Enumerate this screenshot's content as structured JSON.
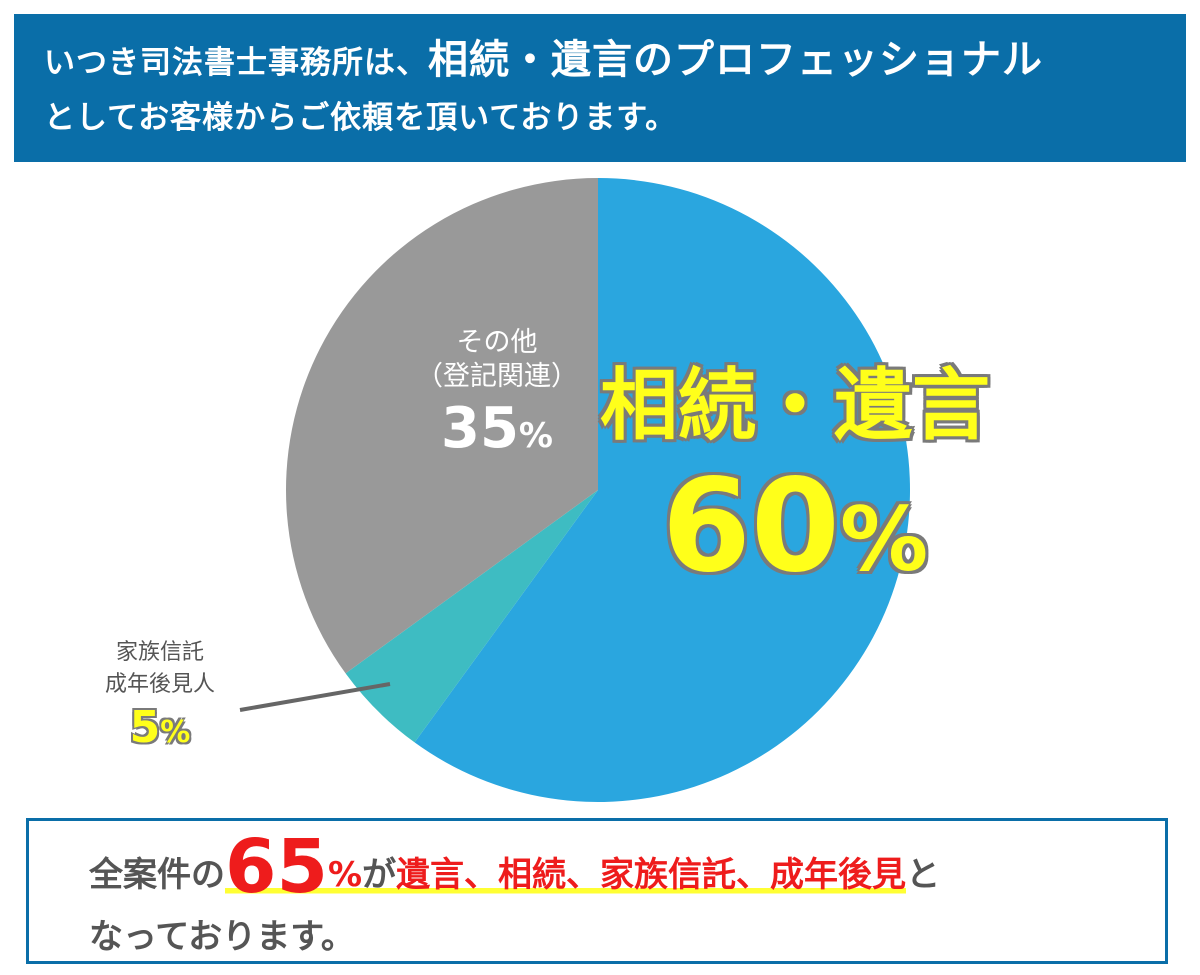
{
  "header": {
    "line1_pre": "いつき司法書士事務所は、",
    "line1_big": "相続・遺言のプロフェッショナル",
    "line2": "としてお客様からご依頼を頂いております。"
  },
  "chart_data": {
    "type": "pie",
    "slices": [
      {
        "label": "相続・遺言",
        "value": 60,
        "percent_text": "60",
        "color": "#2aa6df"
      },
      {
        "label": "家族信託 成年後見人",
        "value": 5,
        "percent_text": "5",
        "color": "#3ebcc2"
      },
      {
        "label": "その他（登記関連）",
        "value": 35,
        "percent_text": "35",
        "color": "#999999"
      }
    ],
    "labels": {
      "main_title": "相続・遺言",
      "small_line1": "家族信託",
      "small_line2": "成年後見人",
      "other_line1": "その他",
      "other_line2": "（登記関連）",
      "percent_sign": "%"
    }
  },
  "footer": {
    "pre": "全案件の",
    "number": "65",
    "percent": "%",
    "ga": "が",
    "items": "遺言、相続、家族信託、成年後見",
    "post": "と",
    "line2": "なっております。"
  }
}
